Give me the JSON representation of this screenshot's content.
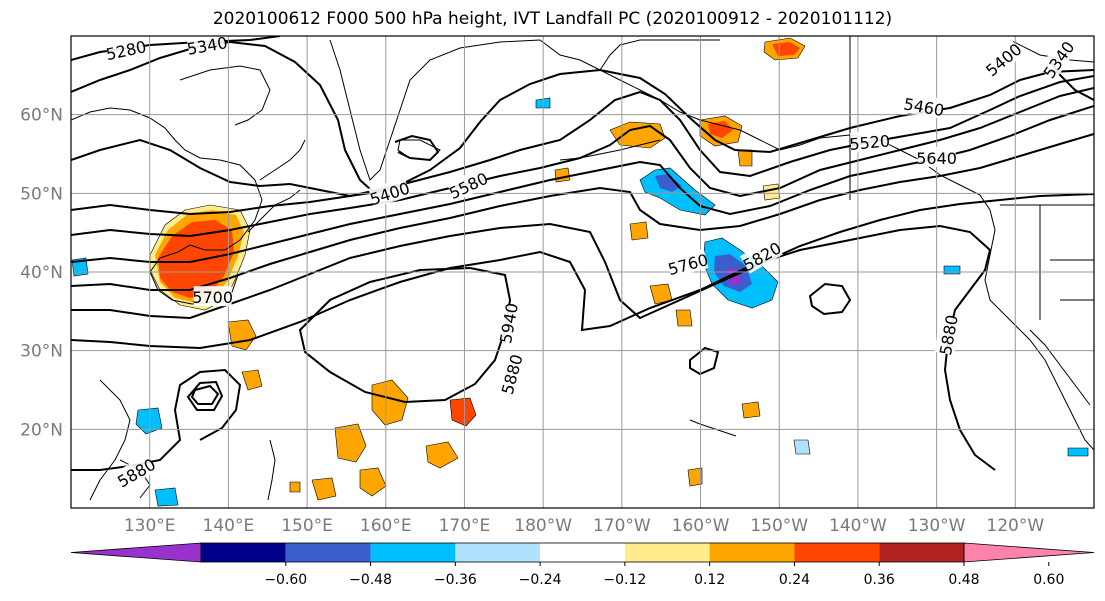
{
  "title": "2020100612 F000 500 hPa height, IVT Landfall PC (2020100912 - 2020101112)",
  "map": {
    "extent": {
      "lon_min": 120,
      "lon_max": 250,
      "lat_min": 10,
      "lat_max": 70
    },
    "lat_ticks": [
      {
        "value": 20,
        "label": "20°N"
      },
      {
        "value": 30,
        "label": "30°N"
      },
      {
        "value": 40,
        "label": "40°N"
      },
      {
        "value": 50,
        "label": "50°N"
      },
      {
        "value": 60,
        "label": "60°N"
      }
    ],
    "lon_ticks": [
      {
        "value": 130,
        "label": "130°E"
      },
      {
        "value": 140,
        "label": "140°E"
      },
      {
        "value": 150,
        "label": "150°E"
      },
      {
        "value": 160,
        "label": "160°E"
      },
      {
        "value": 170,
        "label": "170°E"
      },
      {
        "value": 180,
        "label": "180°W"
      },
      {
        "value": 190,
        "label": "170°W"
      },
      {
        "value": 200,
        "label": "160°W"
      },
      {
        "value": 210,
        "label": "150°W"
      },
      {
        "value": 220,
        "label": "140°W"
      },
      {
        "value": 230,
        "label": "130°W"
      },
      {
        "value": 240,
        "label": "120°W"
      }
    ],
    "gridlines": true
  },
  "height_contours": {
    "labels": [
      {
        "text": "5280",
        "lon": 127.0,
        "lat": 68.2,
        "rot": -12
      },
      {
        "text": "5340",
        "lon": 137.3,
        "lat": 68.8,
        "rot": -10
      },
      {
        "text": "5400",
        "lon": 160.5,
        "lat": 50.0,
        "rot": -18
      },
      {
        "text": "5580",
        "lon": 170.5,
        "lat": 51.0,
        "rot": -25
      },
      {
        "text": "5760",
        "lon": 198.4,
        "lat": 41.0,
        "rot": -15
      },
      {
        "text": "5820",
        "lon": 207.8,
        "lat": 42.0,
        "rot": -30
      },
      {
        "text": "5940",
        "lon": 175.6,
        "lat": 33.5,
        "rot": -80
      },
      {
        "text": "5880",
        "lon": 176.0,
        "lat": 27.0,
        "rot": -75
      },
      {
        "text": "5700",
        "lon": 138.0,
        "lat": 36.8,
        "rot": 0
      },
      {
        "text": "5880",
        "lon": 128.3,
        "lat": 14.5,
        "rot": -30
      },
      {
        "text": "5460",
        "lon": 228.4,
        "lat": 61.0,
        "rot": 10
      },
      {
        "text": "5520",
        "lon": 221.5,
        "lat": 56.5,
        "rot": -5
      },
      {
        "text": "5640",
        "lon": 230.0,
        "lat": 54.5,
        "rot": 0
      },
      {
        "text": "5400",
        "lon": 238.5,
        "lat": 67.0,
        "rot": -40
      },
      {
        "text": "5340",
        "lon": 245.5,
        "lat": 67.0,
        "rot": -55
      },
      {
        "text": "5880",
        "lon": 231.5,
        "lat": 32.0,
        "rot": -80
      }
    ]
  },
  "ivt_shading": {
    "levels": [
      -0.6,
      -0.48,
      -0.36,
      -0.24,
      -0.12,
      0.12,
      0.24,
      0.36,
      0.48,
      0.6
    ],
    "colors": [
      "#9932cc",
      "#00008b",
      "#3a5fcd",
      "#00bfff",
      "#b0e2ff",
      "#ffffff",
      "#ffec8b",
      "#ffa500",
      "#ff4500",
      "#b22222",
      "#ff82ab"
    ]
  },
  "colorbar": {
    "labels": [
      "−0.60",
      "−0.48",
      "−0.36",
      "−0.24",
      "−0.12",
      "0.12",
      "0.24",
      "0.36",
      "0.48",
      "0.60"
    ]
  }
}
